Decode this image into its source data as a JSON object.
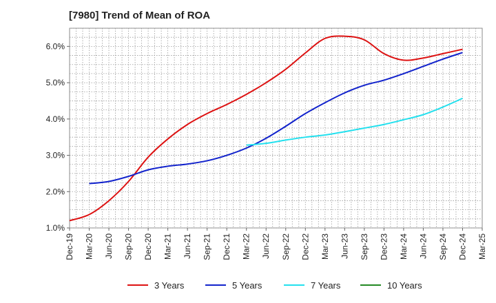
{
  "chart_data": {
    "type": "line",
    "title": "[7980]  Trend of Mean of ROA",
    "xlabel": "",
    "ylabel": "",
    "x": [
      "Dec-19",
      "Mar-20",
      "Jun-20",
      "Sep-20",
      "Dec-20",
      "Mar-21",
      "Jun-21",
      "Sep-21",
      "Dec-21",
      "Mar-22",
      "Jun-22",
      "Sep-22",
      "Dec-22",
      "Mar-23",
      "Jun-23",
      "Sep-23",
      "Dec-23",
      "Mar-24",
      "Jun-24",
      "Sep-24",
      "Dec-24",
      "Mar-25"
    ],
    "ylim": [
      1.0,
      6.5
    ],
    "yticks": [
      1.0,
      2.0,
      3.0,
      4.0,
      5.0,
      6.0
    ],
    "ytick_labels": [
      "1.0%",
      "2.0%",
      "3.0%",
      "4.0%",
      "5.0%",
      "6.0%"
    ],
    "grid": true,
    "legend_position": "bottom",
    "series": [
      {
        "name": "3 Years",
        "color": "#dd1111",
        "values": [
          1.2,
          1.37,
          1.75,
          2.28,
          2.95,
          3.45,
          3.85,
          4.15,
          4.4,
          4.68,
          5.0,
          5.37,
          5.82,
          6.22,
          6.28,
          6.18,
          5.8,
          5.62,
          5.68,
          5.8,
          5.92,
          null
        ]
      },
      {
        "name": "5 Years",
        "color": "#1122cc",
        "values": [
          null,
          2.22,
          2.28,
          2.42,
          2.6,
          2.7,
          2.76,
          2.85,
          3.0,
          3.2,
          3.47,
          3.8,
          4.15,
          4.45,
          4.72,
          4.93,
          5.07,
          5.25,
          5.45,
          5.65,
          5.83,
          null
        ]
      },
      {
        "name": "7 Years",
        "color": "#22e0ee",
        "values": [
          null,
          null,
          null,
          null,
          null,
          null,
          null,
          null,
          null,
          3.28,
          3.33,
          3.42,
          3.5,
          3.56,
          3.65,
          3.75,
          3.85,
          3.98,
          4.12,
          4.33,
          4.57,
          null
        ]
      },
      {
        "name": "10 Years",
        "color": "#228822",
        "values": [
          null,
          null,
          null,
          null,
          null,
          null,
          null,
          null,
          null,
          null,
          null,
          null,
          null,
          null,
          null,
          null,
          null,
          null,
          null,
          null,
          null,
          null
        ]
      }
    ]
  }
}
